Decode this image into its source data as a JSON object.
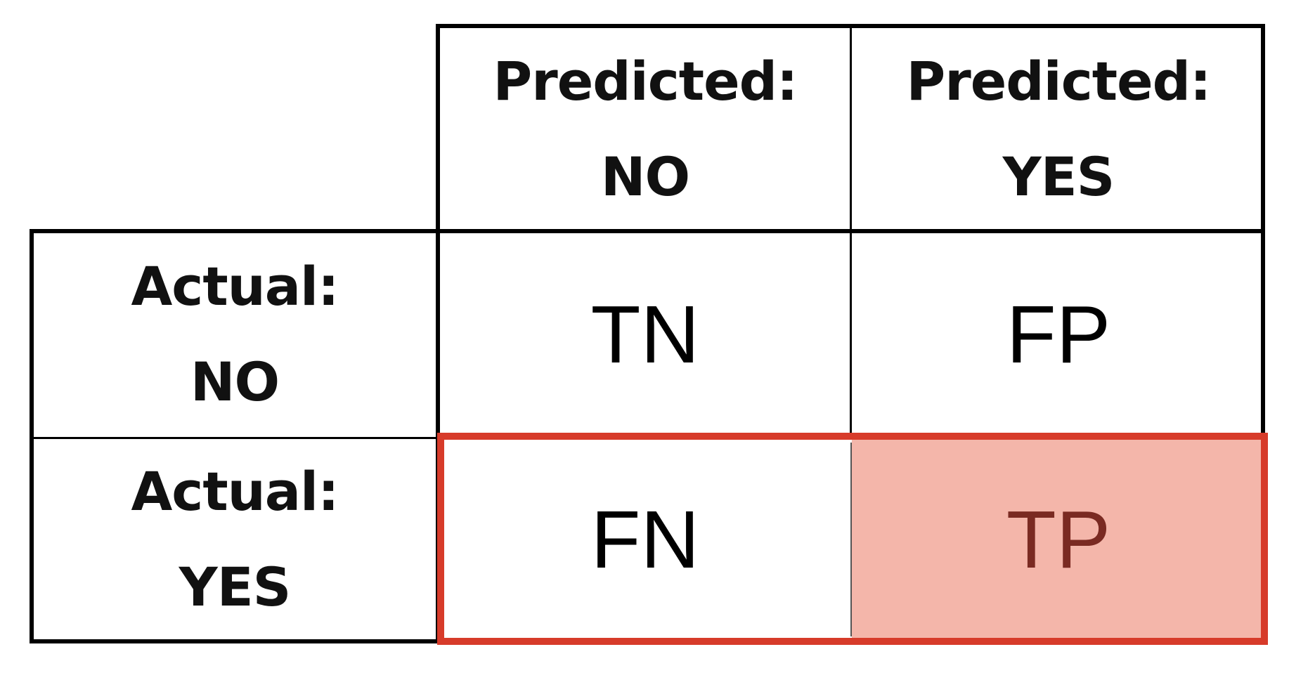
{
  "matrix": {
    "col_headers": [
      {
        "line1": "Predicted:",
        "line2": "NO"
      },
      {
        "line1": "Predicted:",
        "line2": "YES"
      }
    ],
    "row_headers": [
      {
        "line1": "Actual:",
        "line2": "NO"
      },
      {
        "line1": "Actual:",
        "line2": "YES"
      }
    ],
    "cells": [
      [
        "TN",
        "FP"
      ],
      [
        "FN",
        "TP"
      ]
    ]
  },
  "highlight": {
    "row": "Actual: YES",
    "filled_cell": "TP",
    "border_color": "#d73b2a",
    "fill_color": "#f4b6aa",
    "filled_text_color": "#7a2a22"
  }
}
